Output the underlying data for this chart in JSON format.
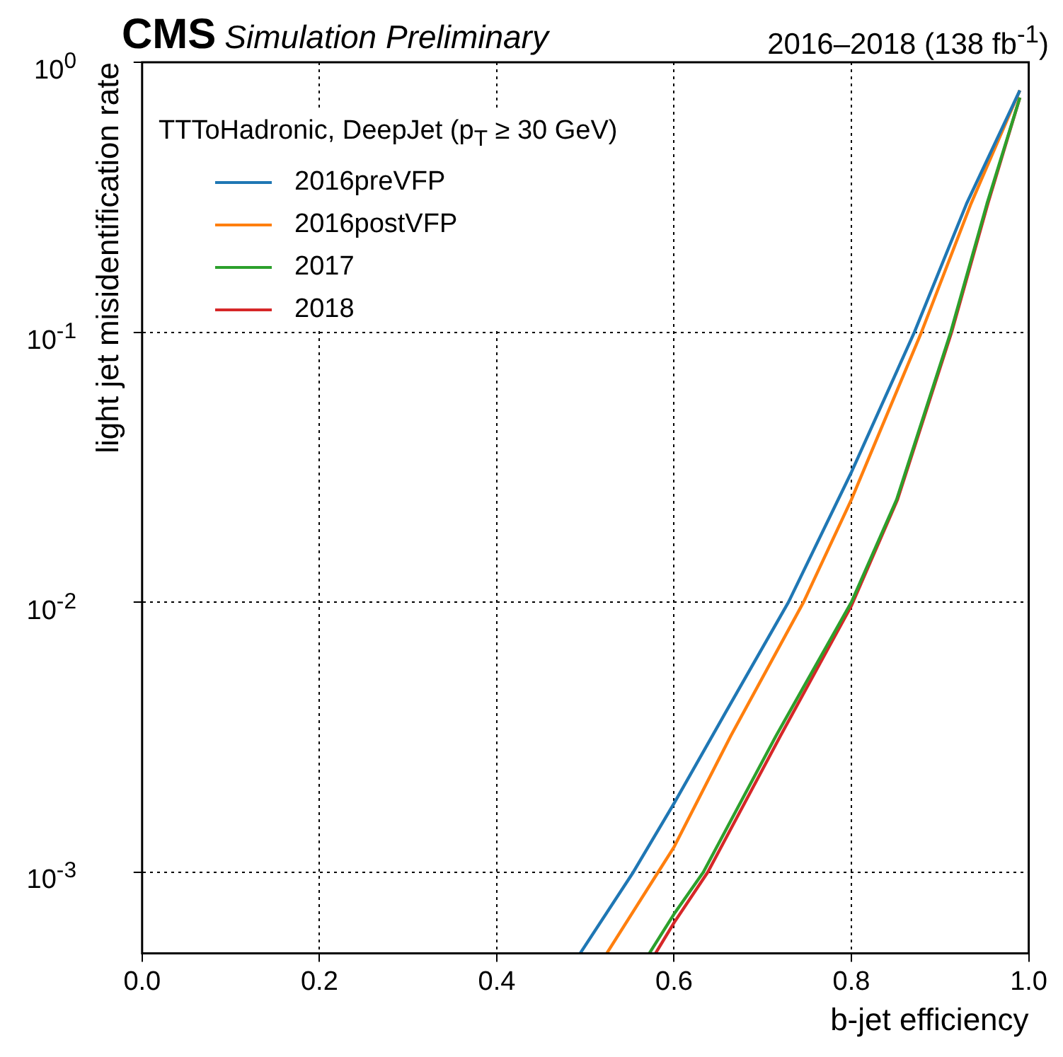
{
  "chart_data": {
    "type": "line",
    "title": "CMS",
    "subtitle": "Simulation Preliminary",
    "annotations": [
      "2016–2018 (138 fb$^{-1}$)"
    ],
    "xlabel": "b-jet efficiency",
    "ylabel": "light jet misidentification rate",
    "legend_title": "TTToHadronic, DeepJet (p$_{T}$ ≥ 30 GeV)",
    "legend": "top left",
    "log": "y",
    "grid": true,
    "marker": "none",
    "line_style": "solid",
    "xlim": [
      0,
      1
    ],
    "xticks": [
      {
        "value": 0,
        "label": "0.0"
      },
      0.2,
      0.4,
      0.6,
      0.8,
      {
        "value": 1,
        "label": "1.0"
      }
    ],
    "ylim": [
      0.0005,
      1
    ],
    "yticks": [
      {
        "value": 0.001,
        "label": "10$^{-3}$"
      },
      {
        "value": 0.01,
        "label": "10$^{-2}$"
      },
      {
        "value": 0.1,
        "label": "10$^{-1}$"
      },
      {
        "value": 1,
        "label": "10$^{0}$"
      }
    ],
    "series": [
      {
        "name": "2016preVFP",
        "color": "#1f77b4",
        "x": [
          0.494,
          0.554,
          0.6,
          0.658,
          0.729,
          0.8,
          0.871,
          0.93,
          0.99
        ],
        "values": [
          0.0005,
          0.001,
          0.0018,
          0.0039,
          0.01,
          0.0303,
          0.1,
          0.3,
          0.787
        ]
      },
      {
        "name": "2016postVFP",
        "color": "#ff7f0e",
        "x": [
          0.524,
          0.582,
          0.6,
          0.664,
          0.746,
          0.8,
          0.879,
          0.935,
          0.99
        ],
        "values": [
          0.0005,
          0.001,
          0.00124,
          0.0032,
          0.01,
          0.024,
          0.1,
          0.3,
          0.787
        ]
      },
      {
        "name": "2017",
        "color": "#2ca02c",
        "x": [
          0.572,
          0.6,
          0.633,
          0.715,
          0.8,
          0.851,
          0.912,
          0.953,
          0.99
        ],
        "values": [
          0.0005,
          0.0007,
          0.001,
          0.0032,
          0.01,
          0.024,
          0.1,
          0.3,
          0.74
        ]
      },
      {
        "name": "2018",
        "color": "#d62728",
        "x": [
          0.579,
          0.6,
          0.638,
          0.72,
          0.8,
          0.852,
          0.913,
          0.954,
          0.99
        ],
        "values": [
          0.0005,
          0.00065,
          0.001,
          0.0032,
          0.0097,
          0.024,
          0.1,
          0.3,
          0.74
        ]
      }
    ]
  }
}
